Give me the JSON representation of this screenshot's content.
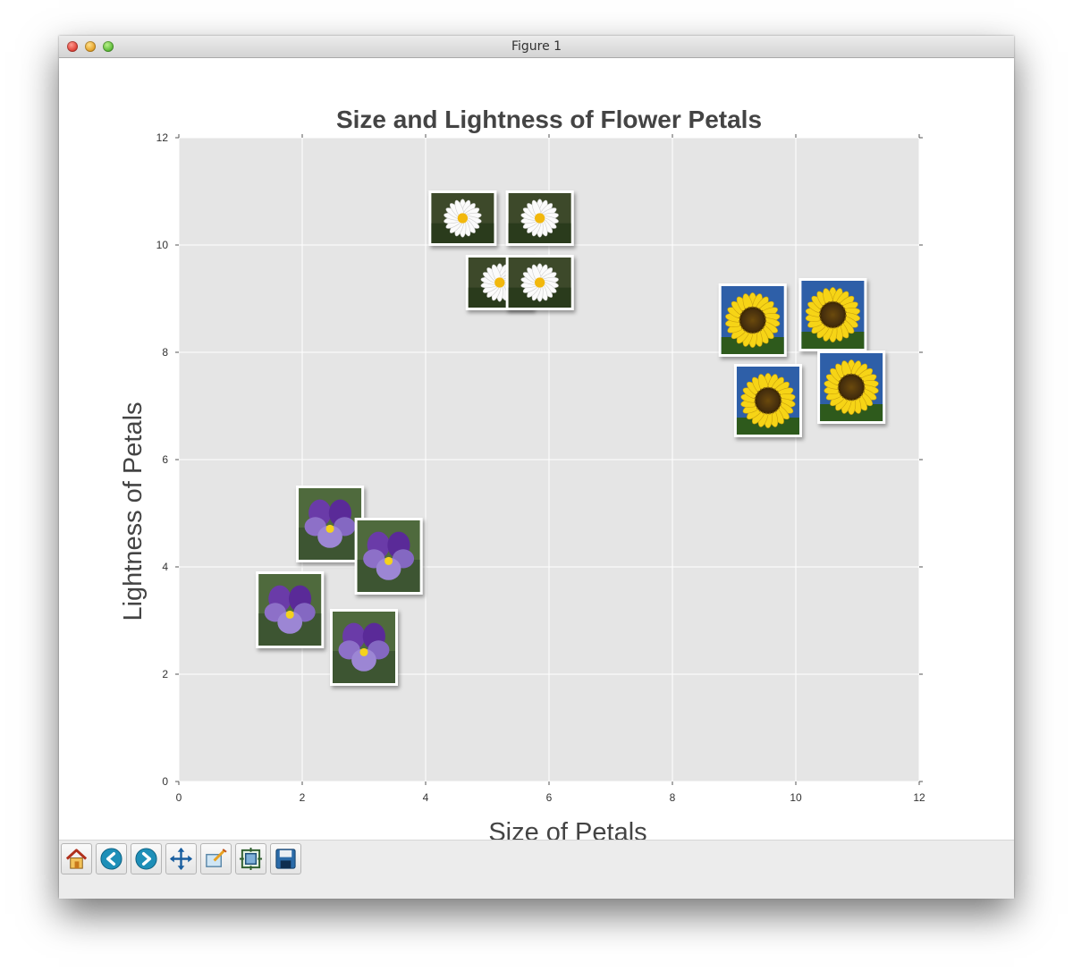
{
  "window": {
    "title": "Figure 1"
  },
  "toolbar": {
    "buttons": [
      {
        "name": "home-button",
        "icon": "home-icon"
      },
      {
        "name": "back-button",
        "icon": "back-arrow-icon"
      },
      {
        "name": "forward-button",
        "icon": "forward-arrow-icon"
      },
      {
        "name": "pan-button",
        "icon": "pan-move-icon"
      },
      {
        "name": "zoom-button",
        "icon": "zoom-rect-icon"
      },
      {
        "name": "subplots-button",
        "icon": "configure-subplots-icon"
      },
      {
        "name": "save-button",
        "icon": "save-floppy-icon"
      }
    ]
  },
  "chart_data": {
    "type": "scatter",
    "title": "Size and Lightness of Flower Petals",
    "xlabel": "Size of Petals",
    "ylabel": "Lightness of Petals",
    "xlim": [
      0,
      12
    ],
    "ylim": [
      0,
      12
    ],
    "xticks": [
      0,
      2,
      4,
      6,
      8,
      10,
      12
    ],
    "yticks": [
      0,
      2,
      4,
      6,
      8,
      10,
      12
    ],
    "grid": true,
    "marker": "flower photo thumbnails",
    "colors": {
      "background": "#e5e5e5",
      "grid": "#ffffff",
      "title": "#444444"
    },
    "series": [
      {
        "kind": "daisy",
        "points": [
          {
            "x": 4.6,
            "y": 10.5
          },
          {
            "x": 5.85,
            "y": 10.5
          },
          {
            "x": 5.2,
            "y": 9.3
          },
          {
            "x": 5.85,
            "y": 9.3
          }
        ]
      },
      {
        "kind": "sunflower",
        "points": [
          {
            "x": 9.3,
            "y": 8.6
          },
          {
            "x": 10.6,
            "y": 8.7
          },
          {
            "x": 9.55,
            "y": 7.1
          },
          {
            "x": 10.9,
            "y": 7.35
          }
        ]
      },
      {
        "kind": "violet",
        "points": [
          {
            "x": 2.45,
            "y": 4.8
          },
          {
            "x": 3.4,
            "y": 4.2
          },
          {
            "x": 1.8,
            "y": 3.2
          },
          {
            "x": 3.0,
            "y": 2.5
          }
        ]
      }
    ]
  }
}
